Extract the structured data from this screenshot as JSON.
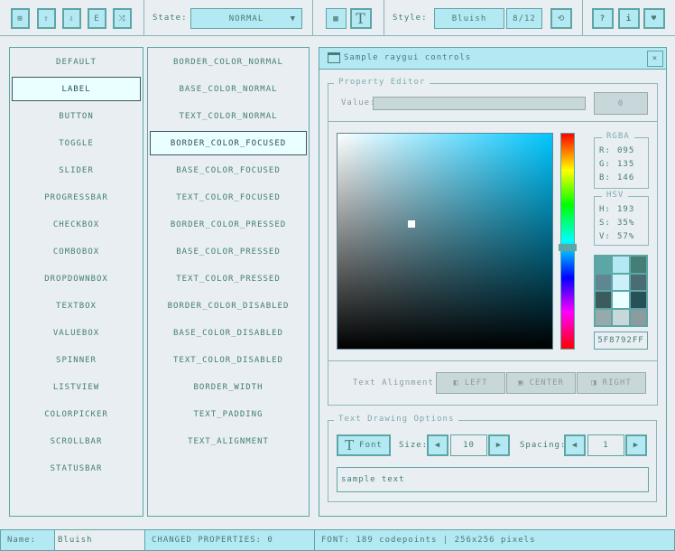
{
  "toolbar": {
    "file_buttons": [
      {
        "icon": "file-new-icon"
      },
      {
        "icon": "file-open-icon"
      },
      {
        "icon": "file-save-icon"
      },
      {
        "icon": "file-export-icon"
      },
      {
        "icon": "shuffle-icon"
      }
    ],
    "state_label": "State:",
    "state_value": "NORMAL",
    "style_label": "Style:",
    "style_value": "Bluish",
    "style_index": "8/12"
  },
  "controls": [
    "DEFAULT",
    "LABEL",
    "BUTTON",
    "TOGGLE",
    "SLIDER",
    "PROGRESSBAR",
    "CHECKBOX",
    "COMBOBOX",
    "DROPDOWNBOX",
    "TEXTBOX",
    "VALUEBOX",
    "SPINNER",
    "LISTVIEW",
    "COLORPICKER",
    "SCROLLBAR",
    "STATUSBAR"
  ],
  "controls_selected": 1,
  "properties": [
    "BORDER_COLOR_NORMAL",
    "BASE_COLOR_NORMAL",
    "TEXT_COLOR_NORMAL",
    "BORDER_COLOR_FOCUSED",
    "BASE_COLOR_FOCUSED",
    "TEXT_COLOR_FOCUSED",
    "BORDER_COLOR_PRESSED",
    "BASE_COLOR_PRESSED",
    "TEXT_COLOR_PRESSED",
    "BORDER_COLOR_DISABLED",
    "BASE_COLOR_DISABLED",
    "TEXT_COLOR_DISABLED",
    "BORDER_WIDTH",
    "TEXT_PADDING",
    "TEXT_ALIGNMENT"
  ],
  "properties_selected": 3,
  "window": {
    "title": "Sample raygui controls",
    "property_editor": {
      "title": "Property Editor",
      "value_label": "Value:",
      "value": "0"
    },
    "rgba": {
      "title": "RGBA",
      "r_label": "R:",
      "r": "095",
      "g_label": "G:",
      "g": "135",
      "b_label": "B:",
      "b": "146"
    },
    "hsv": {
      "title": "HSV",
      "h_label": "H:",
      "h": "193",
      "s_label": "S:",
      "s": "35%",
      "v_label": "V:",
      "v": "57%"
    },
    "hex": "5F8792FF",
    "hue_deg": 193,
    "palette": [
      "#5ca6a6",
      "#b4e8f3",
      "#447e77",
      "#5f8792",
      "#cdeff7",
      "#4c6c74",
      "#3b5b5f",
      "#eaffff",
      "#275057",
      "#96aaac",
      "#c8d7d9",
      "#8c9c9e"
    ],
    "alignment": {
      "label": "Text Alignment:",
      "left": "LEFT",
      "center": "CENTER",
      "right": "RIGHT"
    },
    "text_options": {
      "title": "Text Drawing Options",
      "font_label": "Font",
      "size_label": "Size:",
      "size": "10",
      "spacing_label": "Spacing:",
      "spacing": "1",
      "sample": "sample text"
    }
  },
  "statusbar": {
    "name_label": "Name:",
    "name_value": "Bluish",
    "changed": "CHANGED PROPERTIES: 0",
    "font": "FONT: 189 codepoints | 256x256 pixels"
  },
  "colors": {
    "background": "#e8eef1",
    "border": "#5ca6a6",
    "base": "#b4e8f3",
    "text": "#447e77"
  }
}
